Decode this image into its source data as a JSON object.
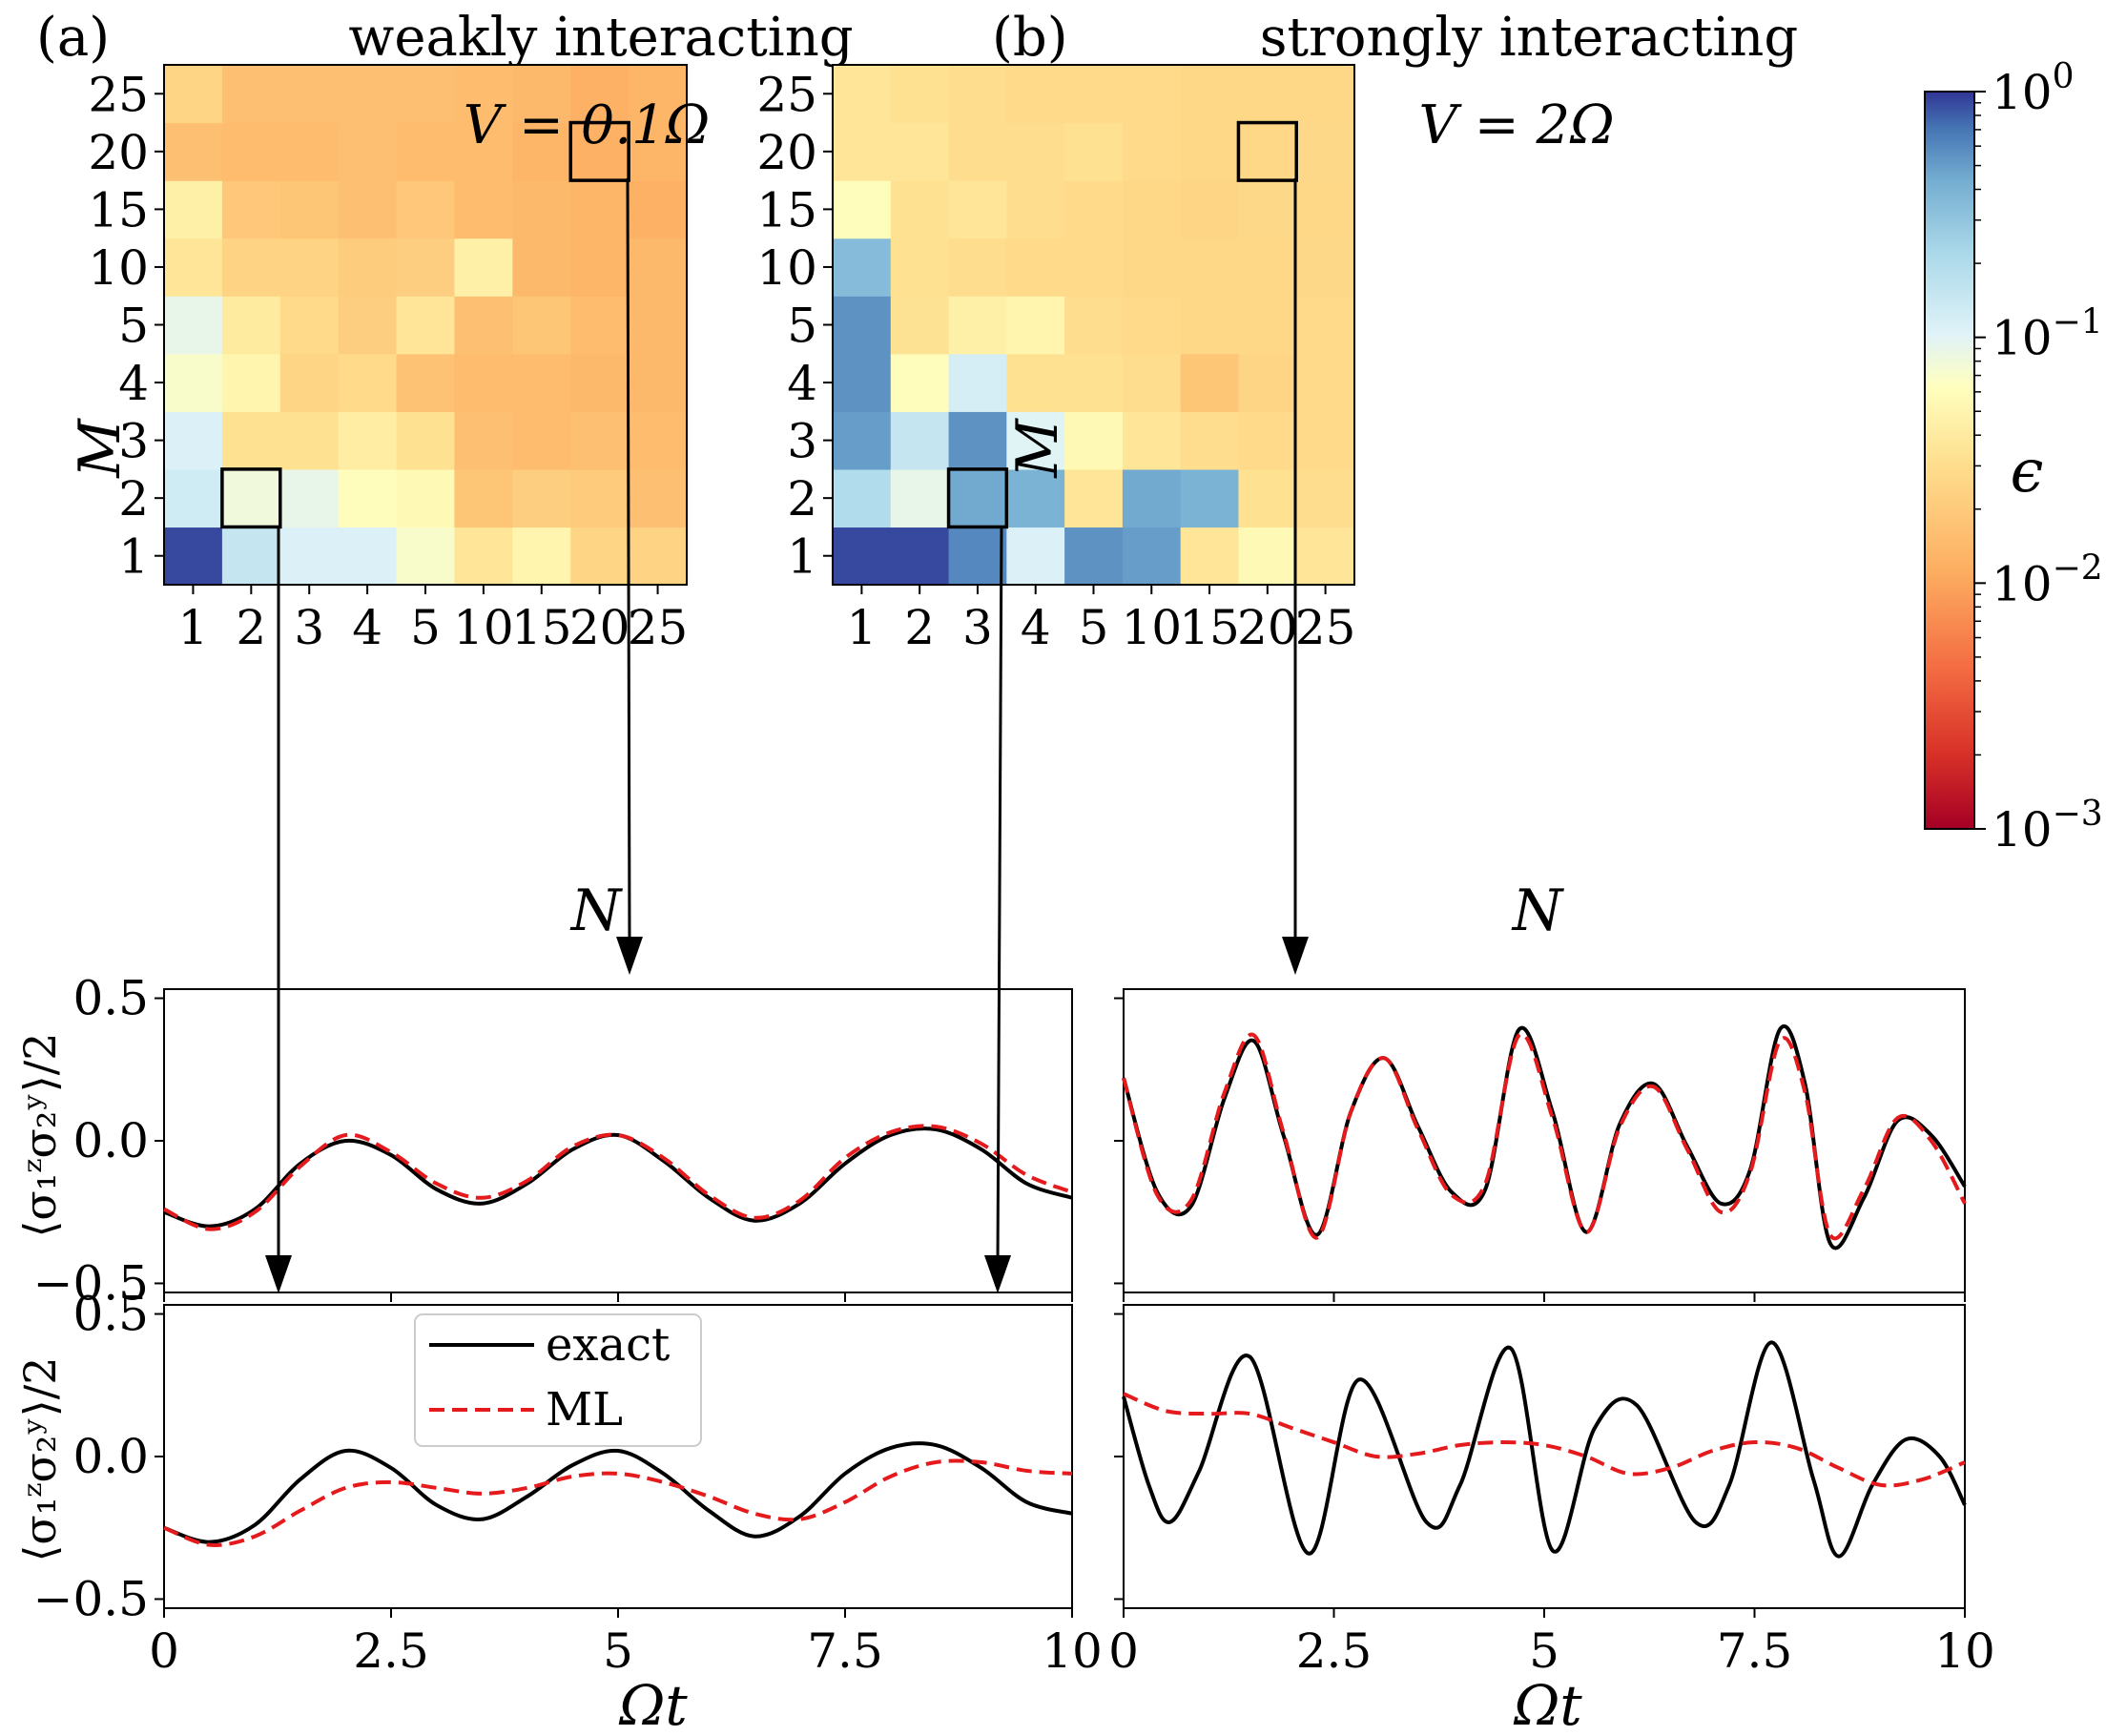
{
  "colors": {
    "exact": "#000000",
    "ml": "#e41a1c",
    "box": "#000000",
    "colormap": [
      "#fff7bc",
      "#fee090",
      "#fdae61",
      "#f46d43",
      "#d73027",
      "#a50026"
    ],
    "heat_low": "#fffbc8"
  },
  "chart_data": [
    {
      "id": "a",
      "type": "heatmap",
      "panel_label": "(a)",
      "title": "weakly interacting",
      "annotation": "V = 0.1Ω",
      "xlabel": "N",
      "ylabel": "M",
      "x_categories": [
        "1",
        "2",
        "3",
        "4",
        "5",
        "10",
        "15",
        "20",
        "25"
      ],
      "y_categories": [
        "1",
        "2",
        "3",
        "4",
        "5",
        "10",
        "15",
        "20",
        "25"
      ],
      "colorscale": "log",
      "zlim": [
        0.001,
        1
      ],
      "values": [
        [
          0.9,
          0.15,
          0.11,
          0.11,
          0.07,
          0.035,
          0.05,
          0.025,
          0.024
        ],
        [
          0.13,
          0.08,
          0.09,
          0.06,
          0.055,
          0.018,
          0.022,
          0.02,
          0.016
        ],
        [
          0.11,
          0.032,
          0.032,
          0.042,
          0.032,
          0.016,
          0.015,
          0.016,
          0.015
        ],
        [
          0.07,
          0.05,
          0.025,
          0.028,
          0.017,
          0.015,
          0.015,
          0.014,
          0.014
        ],
        [
          0.09,
          0.04,
          0.028,
          0.022,
          0.035,
          0.016,
          0.018,
          0.015,
          0.014
        ],
        [
          0.035,
          0.024,
          0.024,
          0.021,
          0.022,
          0.045,
          0.014,
          0.013,
          0.014
        ],
        [
          0.045,
          0.019,
          0.018,
          0.016,
          0.019,
          0.015,
          0.014,
          0.013,
          0.012
        ],
        [
          0.016,
          0.015,
          0.015,
          0.016,
          0.015,
          0.015,
          0.013,
          0.012,
          0.013
        ],
        [
          0.025,
          0.016,
          0.016,
          0.016,
          0.016,
          0.015,
          0.014,
          0.012,
          0.013
        ]
      ],
      "highlight_cells": [
        {
          "N": "20",
          "M": "20"
        },
        {
          "N": "2",
          "M": "2"
        }
      ]
    },
    {
      "id": "b",
      "type": "heatmap",
      "panel_label": "(b)",
      "title": "strongly interacting",
      "annotation": "V = 2Ω",
      "xlabel": "N",
      "ylabel": "M",
      "x_categories": [
        "1",
        "2",
        "3",
        "4",
        "5",
        "10",
        "15",
        "20",
        "25"
      ],
      "y_categories": [
        "1",
        "2",
        "3",
        "4",
        "5",
        "10",
        "15",
        "20",
        "25"
      ],
      "colorscale": "log",
      "zlim": [
        0.001,
        1
      ],
      "values": [
        [
          0.9,
          0.9,
          0.6,
          0.11,
          0.55,
          0.5,
          0.035,
          0.055,
          0.035
        ],
        [
          0.2,
          0.09,
          0.45,
          0.4,
          0.035,
          0.45,
          0.4,
          0.032,
          0.03
        ],
        [
          0.5,
          0.15,
          0.55,
          0.1,
          0.055,
          0.035,
          0.03,
          0.028,
          0.028
        ],
        [
          0.55,
          0.06,
          0.12,
          0.032,
          0.032,
          0.03,
          0.018,
          0.025,
          0.028
        ],
        [
          0.55,
          0.033,
          0.045,
          0.05,
          0.03,
          0.028,
          0.026,
          0.026,
          0.028
        ],
        [
          0.35,
          0.032,
          0.03,
          0.028,
          0.028,
          0.026,
          0.026,
          0.026,
          0.027
        ],
        [
          0.06,
          0.032,
          0.035,
          0.03,
          0.028,
          0.026,
          0.025,
          0.027,
          0.026
        ],
        [
          0.035,
          0.035,
          0.03,
          0.03,
          0.032,
          0.028,
          0.026,
          0.026,
          0.027
        ],
        [
          0.035,
          0.032,
          0.03,
          0.028,
          0.028,
          0.028,
          0.026,
          0.026,
          0.026
        ]
      ],
      "highlight_cells": [
        {
          "N": "20",
          "M": "20"
        },
        {
          "N": "3",
          "M": "2"
        }
      ]
    },
    {
      "id": "colorbar",
      "type": "colorbar",
      "label": "ϵ",
      "scale": "log",
      "range": [
        0.001,
        1
      ],
      "ticks": [
        {
          "value": 1,
          "label": "10",
          "exponent": "0"
        },
        {
          "value": 0.1,
          "label": "10",
          "exponent": "−1"
        },
        {
          "value": 0.01,
          "label": "10",
          "exponent": "−2"
        },
        {
          "value": 0.001,
          "label": "10",
          "exponent": "−3"
        }
      ]
    },
    {
      "id": "a-top",
      "type": "line",
      "source_cell": "N=20, M=20",
      "ylabel": "⟨σ₁ᶻσ₂ʸ⟩/2",
      "xlim": [
        0,
        10
      ],
      "ylim": [
        -0.5,
        0.5
      ],
      "yticks": [
        0.5,
        0.0,
        -0.5
      ],
      "ytick_labels": [
        "0.5",
        "0.0",
        "−0.5"
      ],
      "series": [
        {
          "name": "exact",
          "style": "solid",
          "x": [
            0,
            0.5,
            1.0,
            1.5,
            2.0,
            2.5,
            3.0,
            3.5,
            4.0,
            4.5,
            5.0,
            5.5,
            6.0,
            6.5,
            7.0,
            7.5,
            8.0,
            8.5,
            9.0,
            9.5,
            10
          ],
          "y": [
            -0.25,
            -0.3,
            -0.24,
            -0.08,
            0.0,
            -0.05,
            -0.17,
            -0.22,
            -0.15,
            -0.03,
            0.02,
            -0.07,
            -0.2,
            -0.28,
            -0.22,
            -0.08,
            0.02,
            0.04,
            -0.03,
            -0.15,
            -0.2
          ]
        },
        {
          "name": "ML",
          "style": "dashed",
          "x": [
            0,
            0.5,
            1.0,
            1.5,
            2.0,
            2.5,
            3.0,
            3.5,
            4.0,
            4.5,
            5.0,
            5.5,
            6.0,
            6.5,
            7.0,
            7.5,
            8.0,
            8.5,
            9.0,
            9.5,
            10
          ],
          "y": [
            -0.24,
            -0.31,
            -0.25,
            -0.09,
            0.02,
            -0.04,
            -0.15,
            -0.2,
            -0.14,
            -0.02,
            0.02,
            -0.06,
            -0.19,
            -0.27,
            -0.21,
            -0.06,
            0.03,
            0.05,
            -0.01,
            -0.12,
            -0.18
          ]
        }
      ]
    },
    {
      "id": "a-bottom",
      "type": "line",
      "source_cell": "N=2, M=2",
      "ylabel": "⟨σ₁ᶻσ₂ʸ⟩/2",
      "xlabel": "Ωt",
      "xlim": [
        0,
        10
      ],
      "ylim": [
        -0.5,
        0.5
      ],
      "xticks": [
        0,
        2.5,
        5,
        7.5,
        10
      ],
      "xtick_labels": [
        "0",
        "2.5",
        "5",
        "7.5",
        "10"
      ],
      "yticks": [
        0.5,
        0.0,
        -0.5
      ],
      "ytick_labels": [
        "0.5",
        "0.0",
        "−0.5"
      ],
      "legend": {
        "entries": [
          "exact",
          "ML"
        ],
        "loc": "upper-left"
      },
      "series": [
        {
          "name": "exact",
          "style": "solid",
          "x": [
            0,
            0.5,
            1.0,
            1.5,
            2.0,
            2.5,
            3.0,
            3.5,
            4.0,
            4.5,
            5.0,
            5.5,
            6.0,
            6.5,
            7.0,
            7.5,
            8.0,
            8.5,
            9.0,
            9.5,
            10
          ],
          "y": [
            -0.25,
            -0.3,
            -0.24,
            -0.08,
            0.02,
            -0.04,
            -0.17,
            -0.22,
            -0.14,
            -0.03,
            0.02,
            -0.06,
            -0.19,
            -0.28,
            -0.21,
            -0.06,
            0.03,
            0.04,
            -0.04,
            -0.16,
            -0.2
          ]
        },
        {
          "name": "ML",
          "style": "dashed",
          "x": [
            0,
            0.5,
            1.0,
            1.5,
            2.0,
            2.5,
            3.0,
            3.5,
            4.0,
            4.5,
            5.0,
            5.5,
            6.0,
            6.5,
            7.0,
            7.5,
            8.0,
            8.5,
            9.0,
            9.5,
            10
          ],
          "y": [
            -0.25,
            -0.31,
            -0.28,
            -0.19,
            -0.11,
            -0.09,
            -0.11,
            -0.13,
            -0.11,
            -0.07,
            -0.06,
            -0.09,
            -0.14,
            -0.2,
            -0.22,
            -0.16,
            -0.07,
            -0.02,
            -0.02,
            -0.05,
            -0.06
          ]
        }
      ]
    },
    {
      "id": "b-top",
      "type": "line",
      "source_cell": "N=20, M=20",
      "xlim": [
        0,
        10
      ],
      "ylim": [
        -0.5,
        0.5
      ],
      "series": [
        {
          "name": "exact",
          "style": "solid",
          "x": [
            0,
            0.4,
            0.8,
            1.2,
            1.55,
            1.9,
            2.3,
            2.7,
            3.1,
            3.5,
            3.9,
            4.3,
            4.7,
            5.1,
            5.5,
            5.9,
            6.3,
            6.7,
            7.1,
            7.45,
            7.8,
            8.1,
            8.4,
            8.8,
            9.2,
            9.6,
            10
          ],
          "y": [
            0.22,
            -0.18,
            -0.23,
            0.15,
            0.35,
            0.02,
            -0.33,
            0.1,
            0.29,
            0.05,
            -0.18,
            -0.17,
            0.39,
            0.1,
            -0.32,
            0.06,
            0.2,
            -0.02,
            -0.22,
            -0.1,
            0.39,
            0.2,
            -0.36,
            -0.2,
            0.07,
            0.02,
            -0.16
          ]
        },
        {
          "name": "ML",
          "style": "dashed",
          "x": [
            0,
            0.4,
            0.8,
            1.2,
            1.55,
            1.9,
            2.3,
            2.7,
            3.1,
            3.5,
            3.9,
            4.3,
            4.7,
            5.1,
            5.5,
            5.9,
            6.3,
            6.7,
            7.1,
            7.45,
            7.8,
            8.1,
            8.4,
            8.8,
            9.2,
            9.6,
            10
          ],
          "y": [
            0.22,
            -0.19,
            -0.21,
            0.17,
            0.37,
            0.03,
            -0.34,
            0.1,
            0.29,
            0.04,
            -0.19,
            -0.15,
            0.37,
            0.08,
            -0.32,
            0.05,
            0.19,
            -0.03,
            -0.25,
            -0.11,
            0.35,
            0.17,
            -0.33,
            -0.17,
            0.08,
            0.0,
            -0.22
          ]
        }
      ]
    },
    {
      "id": "b-bottom",
      "type": "line",
      "source_cell": "N=3, M=2",
      "xlabel": "Ωt",
      "xlim": [
        0,
        10
      ],
      "ylim": [
        -0.5,
        0.5
      ],
      "xticks": [
        0,
        2.5,
        5,
        7.5,
        10
      ],
      "xtick_labels": [
        "0",
        "2.5",
        "5",
        "7.5",
        "10"
      ],
      "series": [
        {
          "name": "exact",
          "style": "solid",
          "x": [
            0,
            0.3,
            0.55,
            0.9,
            1.5,
            2.2,
            2.8,
            3.6,
            4.0,
            4.6,
            5.1,
            5.6,
            6.1,
            6.8,
            7.2,
            7.7,
            8.2,
            8.5,
            8.9,
            9.3,
            9.7,
            10
          ],
          "y": [
            0.21,
            -0.1,
            -0.23,
            -0.05,
            0.35,
            -0.34,
            0.27,
            -0.23,
            -0.1,
            0.38,
            -0.33,
            0.1,
            0.18,
            -0.23,
            -0.1,
            0.4,
            -0.08,
            -0.35,
            -0.1,
            0.06,
            0.0,
            -0.17
          ]
        },
        {
          "name": "ML",
          "style": "dashed",
          "x": [
            0,
            0.5,
            1.0,
            1.5,
            2.0,
            2.5,
            3.0,
            3.5,
            4.0,
            4.5,
            5.0,
            5.5,
            6.0,
            6.5,
            7.0,
            7.5,
            8.0,
            8.5,
            9.0,
            9.5,
            10
          ],
          "y": [
            0.22,
            0.16,
            0.15,
            0.15,
            0.1,
            0.05,
            0.0,
            0.01,
            0.04,
            0.05,
            0.04,
            0.0,
            -0.06,
            -0.04,
            0.02,
            0.05,
            0.03,
            -0.04,
            -0.1,
            -0.08,
            -0.02
          ]
        }
      ]
    }
  ]
}
